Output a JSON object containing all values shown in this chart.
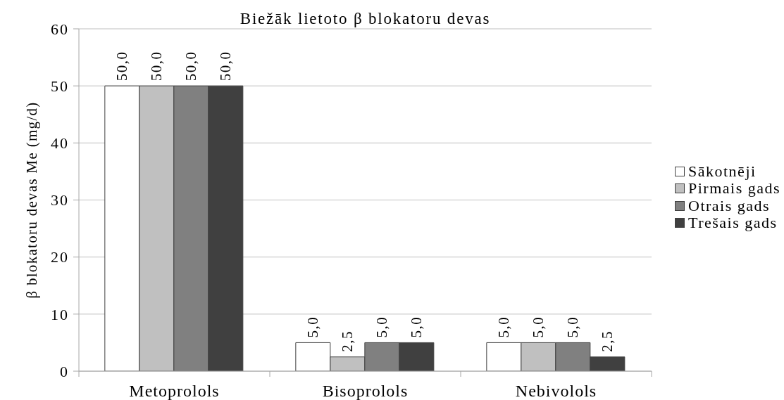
{
  "chart_data": {
    "type": "bar",
    "title": "Biežāk lietoto β blokatoru devas",
    "ylabel": "β blokatoru devas Me (mg/d)",
    "categories": [
      "Metoprolols",
      "Bisoprolols",
      "Nebivolols"
    ],
    "series": [
      {
        "name": "Sākotnēji",
        "color": "#ffffff",
        "values": [
          50,
          5,
          5
        ],
        "value_labels": [
          "50,0",
          "5,0",
          "5,0"
        ]
      },
      {
        "name": "Pirmais gads",
        "color": "#c0c0c0",
        "values": [
          50,
          2.5,
          5
        ],
        "value_labels": [
          "50,0",
          "2,5",
          "5,0"
        ]
      },
      {
        "name": "Otrais gads",
        "color": "#808080",
        "values": [
          50,
          5,
          5
        ],
        "value_labels": [
          "50,0",
          "5,0",
          "5,0"
        ]
      },
      {
        "name": "Trešais gads",
        "color": "#404040",
        "values": [
          50,
          5,
          2.5
        ],
        "value_labels": [
          "50,0",
          "5,0",
          "2,5"
        ]
      }
    ],
    "ylim": [
      0,
      60
    ],
    "yticks": [
      0,
      10,
      20,
      30,
      40,
      50,
      60
    ],
    "grid": "y",
    "legend": "right"
  }
}
